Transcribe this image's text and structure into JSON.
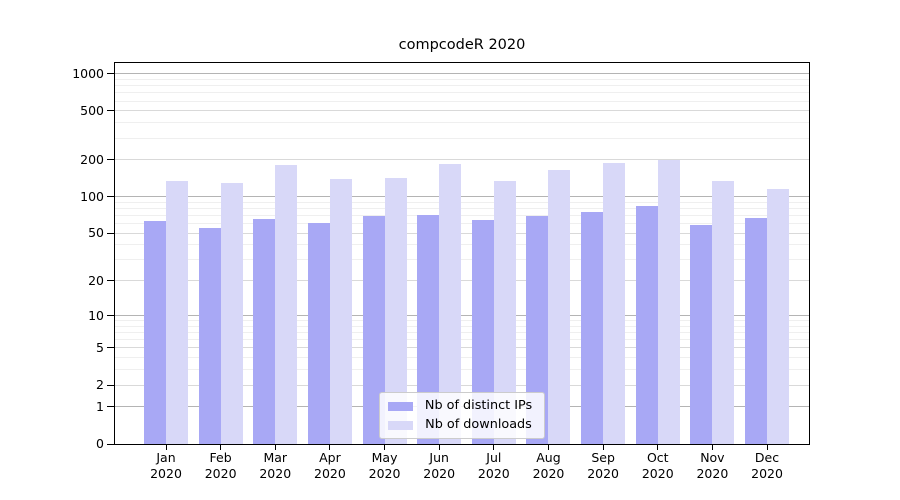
{
  "chart_data": {
    "type": "bar",
    "title": "compcodeR 2020",
    "categories": [
      "Jan",
      "Feb",
      "Mar",
      "Apr",
      "May",
      "Jun",
      "Jul",
      "Aug",
      "Sep",
      "Oct",
      "Nov",
      "Dec"
    ],
    "x_tick_second_line": "2020",
    "series": [
      {
        "name": "Nb of distinct IPs",
        "color": "#a8a8f5",
        "values": [
          63,
          55,
          66,
          61,
          70,
          71,
          64,
          69,
          75,
          84,
          59,
          67
        ]
      },
      {
        "name": "Nb of downloads",
        "color": "#d8d8f8",
        "values": [
          135,
          130,
          180,
          139,
          143,
          184,
          134,
          164,
          188,
          200,
          135,
          115
        ]
      }
    ],
    "y_axis": {
      "scale": "log1p",
      "ticks": [
        0,
        1,
        2,
        5,
        10,
        20,
        50,
        100,
        200,
        500,
        1000
      ],
      "major_decades": [
        1,
        10,
        100,
        1000
      ],
      "minor_gridlines": [
        3,
        4,
        6,
        7,
        8,
        9,
        30,
        40,
        60,
        70,
        80,
        90,
        300,
        400,
        600,
        700,
        800,
        900
      ],
      "ylim": [
        0,
        1223
      ]
    },
    "xlabel": "",
    "ylabel": "",
    "grid": "horizontal-only",
    "legend_position": "lower center"
  }
}
